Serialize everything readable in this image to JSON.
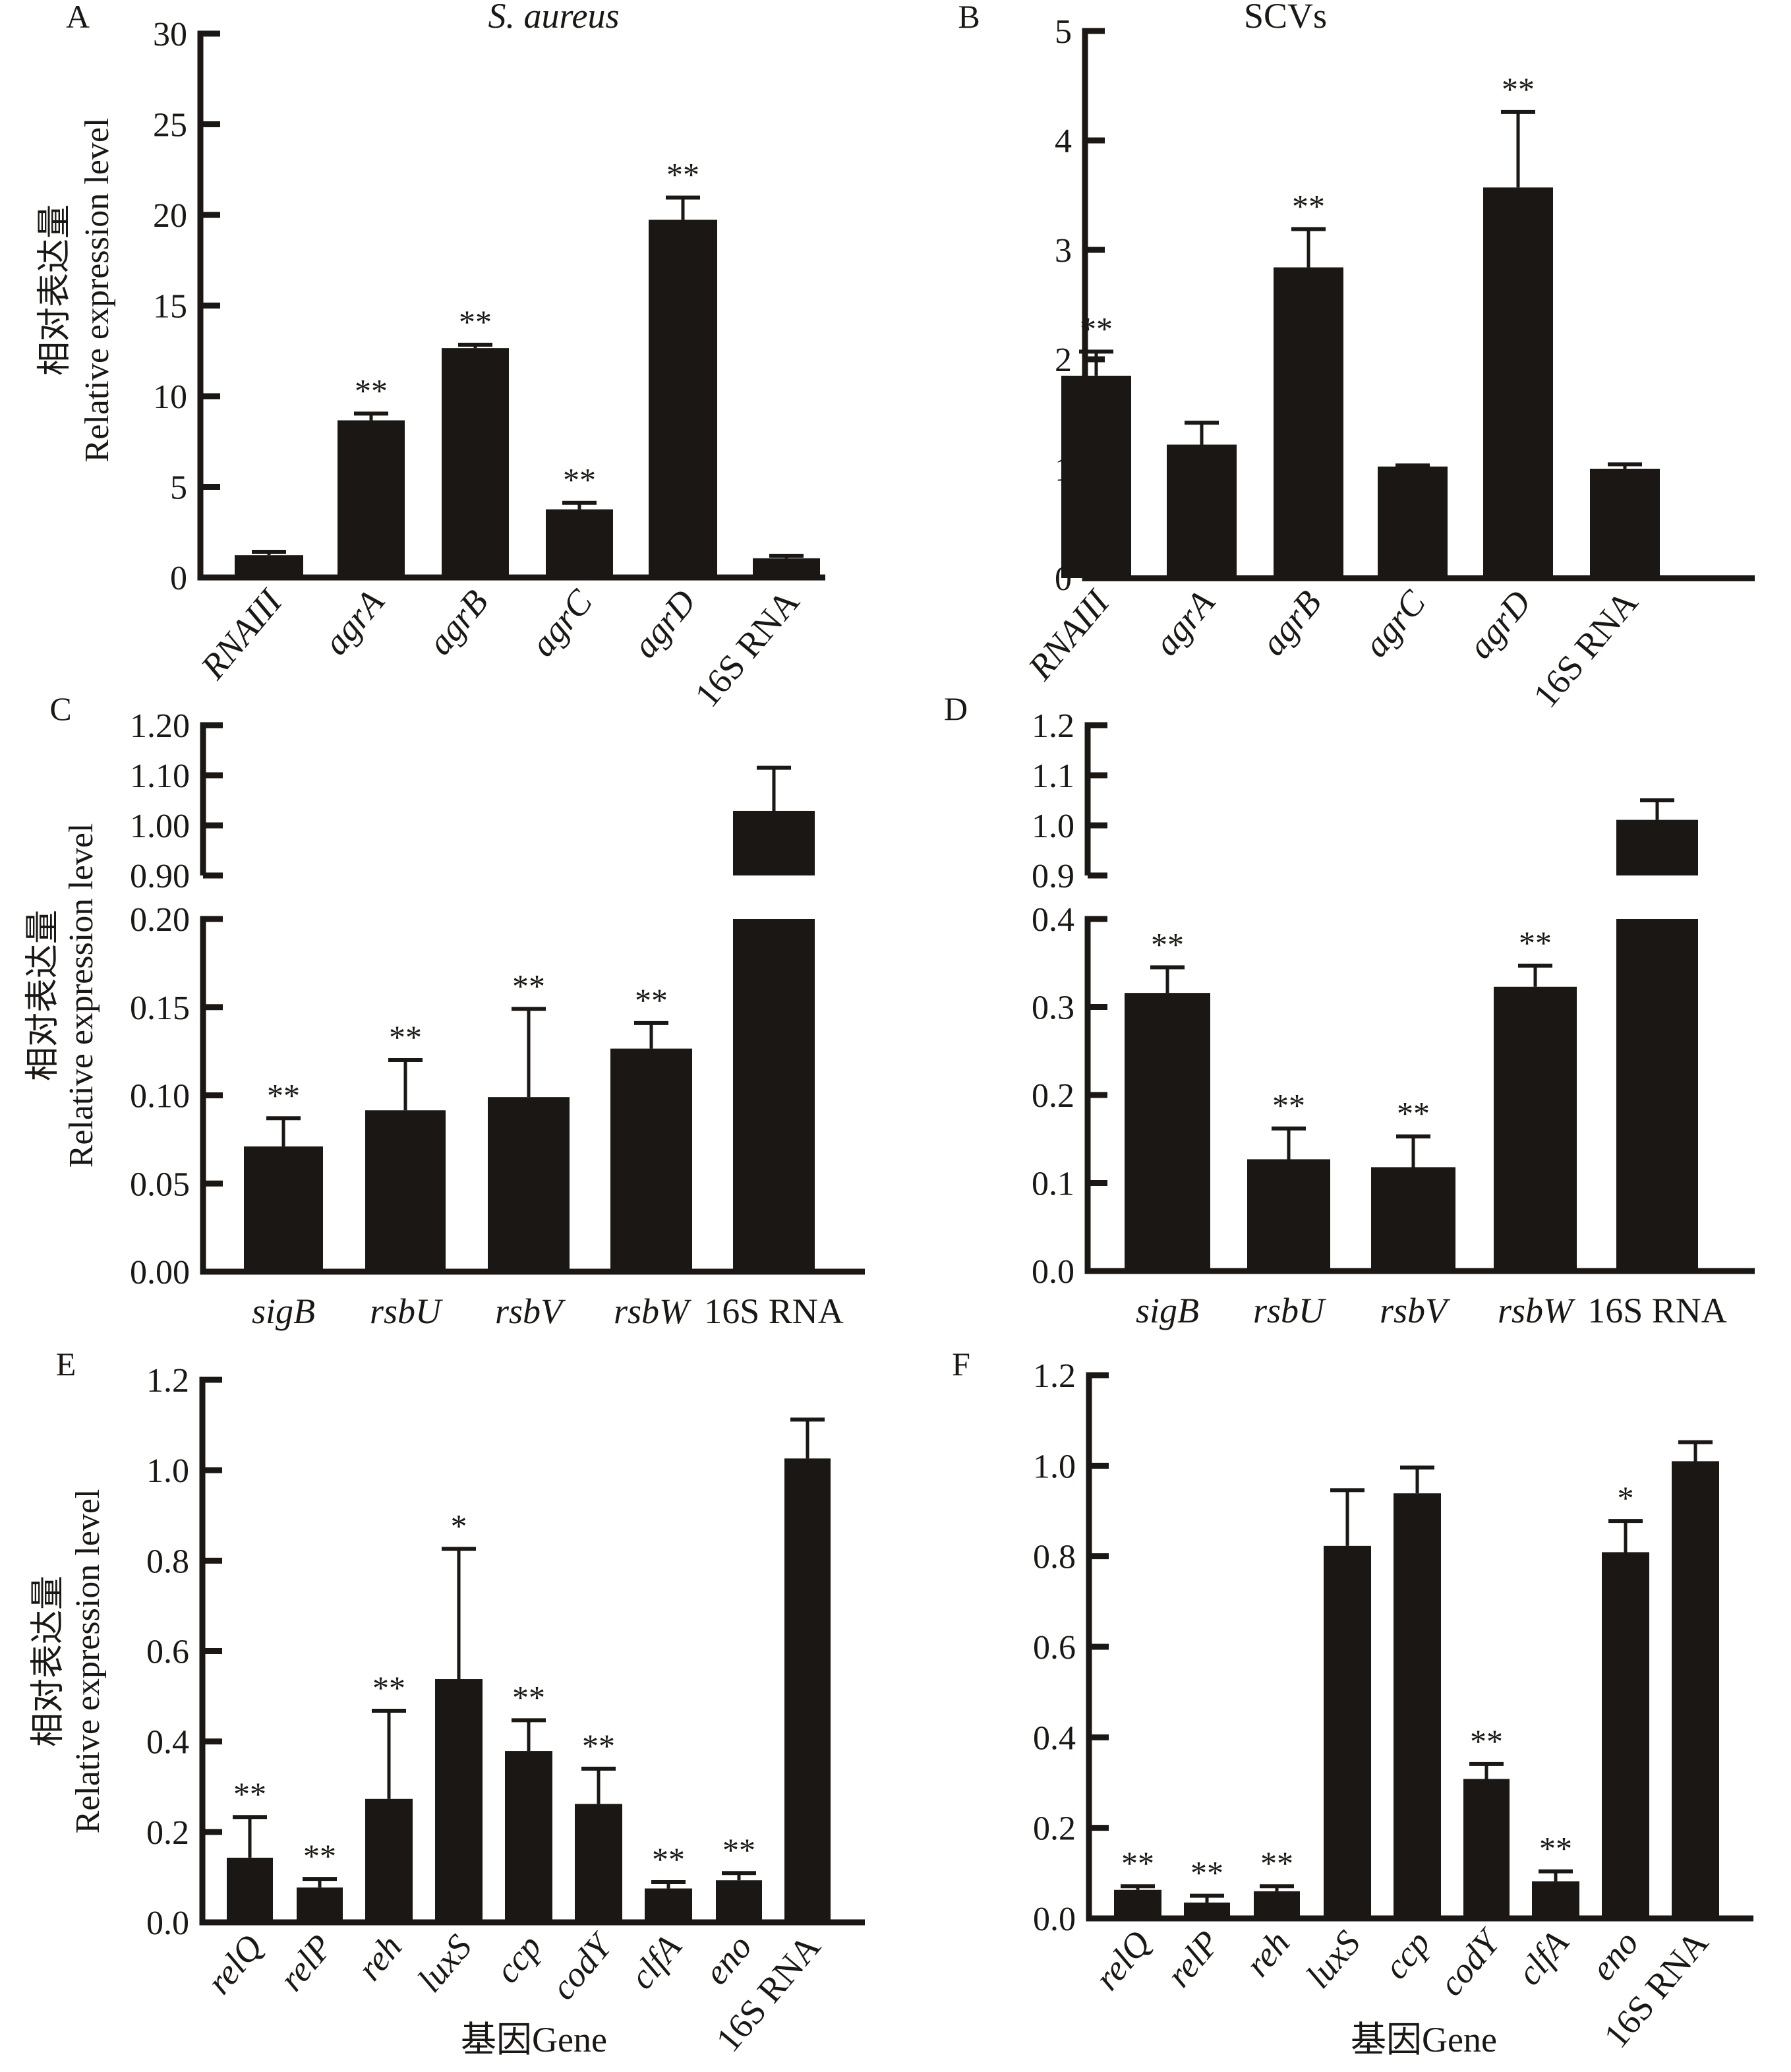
{
  "chart_data": [
    {
      "panel": "A",
      "type": "bar",
      "title": "S. aureus",
      "title_italic": true,
      "ylabel_cn": "相对表达量",
      "ylabel": "Relative expression level",
      "xlabel": "",
      "ylim": [
        0,
        30
      ],
      "yticks": [
        "0",
        "5",
        "10",
        "15",
        "20",
        "25",
        "30"
      ],
      "ytick_values": [
        0,
        5,
        10,
        15,
        20,
        25,
        30
      ],
      "categories": [
        "RNAIII",
        "agrA",
        "agrB",
        "agrC",
        "agrD",
        "16S RNA"
      ],
      "category_italic": [
        true,
        true,
        true,
        true,
        true,
        false
      ],
      "values": [
        1.23,
        8.67,
        12.65,
        3.76,
        19.73,
        1.06
      ],
      "error_upper": [
        1.42,
        9.04,
        12.84,
        4.12,
        20.96,
        1.2
      ],
      "significance": [
        "",
        "**",
        "**",
        "**",
        "**",
        ""
      ],
      "label_rotation": "diagonal"
    },
    {
      "panel": "B",
      "type": "bar",
      "title": "SCVs",
      "title_italic": false,
      "xlabel": "",
      "ylim": [
        0,
        5
      ],
      "yticks": [
        "0",
        "1",
        "2",
        "3",
        "4",
        "5"
      ],
      "ytick_values": [
        0,
        1,
        2,
        3,
        4,
        5
      ],
      "categories": [
        "RNAIII",
        "agrA",
        "agrB",
        "agrC",
        "agrD",
        "16S RNA"
      ],
      "category_italic": [
        true,
        true,
        true,
        true,
        true,
        false
      ],
      "values": [
        1.85,
        1.22,
        2.84,
        1.02,
        3.57,
        1.0
      ],
      "error_upper": [
        2.07,
        1.42,
        3.19,
        1.03,
        4.26,
        1.04
      ],
      "significance": [
        "**",
        "",
        "**",
        "",
        "**",
        ""
      ],
      "label_rotation": "diagonal"
    },
    {
      "panel": "C",
      "type": "bar",
      "ylabel_cn": "相对表达量",
      "ylabel": "Relative expression level",
      "xlabel": "",
      "broken_axis": true,
      "ylim_lower": [
        0,
        0.2
      ],
      "ylim_upper": [
        0.9,
        1.2
      ],
      "yticks_lower": [
        "0.00",
        "0.05",
        "0.10",
        "0.15",
        "0.20"
      ],
      "ytick_values_lower": [
        0,
        0.05,
        0.1,
        0.15,
        0.2
      ],
      "yticks_upper": [
        "0.90",
        "1.00",
        "1.10",
        "1.20"
      ],
      "ytick_values_upper": [
        0.9,
        1.0,
        1.1,
        1.2
      ],
      "categories": [
        "sigB",
        "rsbU",
        "rsbV",
        "rsbW",
        "16S RNA"
      ],
      "category_italic": [
        true,
        true,
        true,
        true,
        false
      ],
      "values": [
        0.071,
        0.0915,
        0.099,
        0.1265,
        1.029
      ],
      "error_upper": [
        0.087,
        0.12,
        0.149,
        0.141,
        1.115
      ],
      "significance": [
        "**",
        "**",
        "**",
        "**",
        ""
      ],
      "label_rotation": "horizontal"
    },
    {
      "panel": "D",
      "type": "bar",
      "xlabel": "",
      "broken_axis": true,
      "ylim_lower": [
        0,
        0.4
      ],
      "ylim_upper": [
        0.9,
        1.2
      ],
      "yticks_lower": [
        "0.0",
        "0.1",
        "0.2",
        "0.3",
        "0.4"
      ],
      "ytick_values_lower": [
        0,
        0.1,
        0.2,
        0.3,
        0.4
      ],
      "yticks_upper": [
        "0.9",
        "1.0",
        "1.1",
        "1.2"
      ],
      "ytick_values_upper": [
        0.9,
        1.0,
        1.1,
        1.2
      ],
      "categories": [
        "sigB",
        "rsbU",
        "rsbV",
        "rsbW",
        "16S RNA"
      ],
      "category_italic": [
        true,
        true,
        true,
        true,
        false
      ],
      "values": [
        0.316,
        0.127,
        0.118,
        0.323,
        1.011
      ],
      "error_upper": [
        0.345,
        0.162,
        0.153,
        0.347,
        1.05
      ],
      "significance": [
        "**",
        "**",
        "**",
        "**",
        ""
      ],
      "label_rotation": "horizontal"
    },
    {
      "panel": "E",
      "type": "bar",
      "ylabel_cn": "相对表达量",
      "ylabel": "Relative expression level",
      "xlabel": "基因Gene",
      "ylim": [
        0,
        1.2
      ],
      "yticks": [
        "0.0",
        "0.2",
        "0.4",
        "0.6",
        "0.8",
        "1.0",
        "1.2"
      ],
      "ytick_values": [
        0,
        0.2,
        0.4,
        0.6,
        0.8,
        1.0,
        1.2
      ],
      "categories": [
        "relQ",
        "relP",
        "reh",
        "luxS",
        "ccp",
        "codY",
        "clfA",
        "eno",
        "16S RNA"
      ],
      "category_italic": [
        true,
        true,
        true,
        true,
        true,
        true,
        true,
        true,
        false
      ],
      "values": [
        0.143,
        0.077,
        0.273,
        0.538,
        0.379,
        0.262,
        0.075,
        0.093,
        1.026
      ],
      "error_upper": [
        0.233,
        0.096,
        0.468,
        0.826,
        0.447,
        0.34,
        0.089,
        0.109,
        1.112
      ],
      "significance": [
        "**",
        "**",
        "**",
        "*",
        "**",
        "**",
        "**",
        "**",
        ""
      ],
      "label_rotation": "diagonal"
    },
    {
      "panel": "F",
      "type": "bar",
      "xlabel": "基因Gene",
      "ylim": [
        0,
        1.2
      ],
      "yticks": [
        "0.0",
        "0.2",
        "0.4",
        "0.6",
        "0.8",
        "1.0",
        "1.2"
      ],
      "ytick_values": [
        0,
        0.2,
        0.4,
        0.6,
        0.8,
        1.0,
        1.2
      ],
      "categories": [
        "relQ",
        "relP",
        "reh",
        "luxS",
        "ccp",
        "codY",
        "clfA",
        "eno",
        "16S RNA"
      ],
      "category_italic": [
        true,
        true,
        true,
        true,
        true,
        true,
        true,
        true,
        false
      ],
      "values": [
        0.063,
        0.035,
        0.06,
        0.823,
        0.939,
        0.308,
        0.082,
        0.809,
        1.01
      ],
      "error_upper": [
        0.071,
        0.05,
        0.071,
        0.946,
        0.996,
        0.341,
        0.104,
        0.878,
        1.052
      ],
      "significance": [
        "**",
        "**",
        "**",
        "",
        "",
        "**",
        "**",
        "*",
        ""
      ],
      "label_rotation": "diagonal"
    }
  ],
  "colors": {
    "bar": "#1a1714",
    "axis": "#1a1714",
    "background": "#ffffff"
  }
}
